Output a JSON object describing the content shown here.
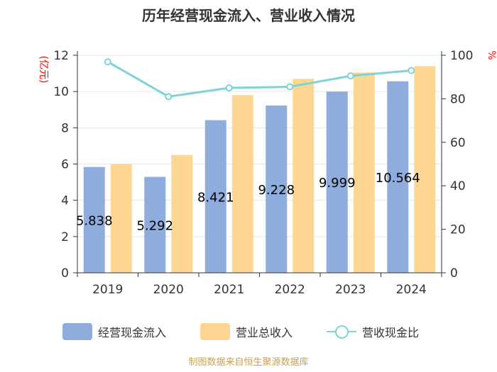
{
  "title": "历年经营现金流入、营业收入情况",
  "source": "制图数据来自恒生聚源数据库",
  "colors": {
    "cash": "#8eacdc",
    "revenue": "#fdd791",
    "ratio": "#7fd3d6",
    "axis": "#333333",
    "grid": "#e6e6e6",
    "unit": "#ff0000",
    "bar_label": "#000000"
  },
  "chart_data": {
    "type": "bar",
    "title": "历年经营现金流入、营业收入情况",
    "categories": [
      "2019",
      "2020",
      "2021",
      "2022",
      "2023",
      "2024"
    ],
    "series": [
      {
        "name": "经营现金流入",
        "axis": "left",
        "values": [
          5.838,
          5.292,
          8.421,
          9.228,
          9.999,
          10.564
        ],
        "labels": [
          "5.838",
          "5.292",
          "8.421",
          "9.228",
          "9.999",
          "10.564"
        ]
      },
      {
        "name": "营业总收入",
        "axis": "left",
        "values": [
          6.0,
          6.5,
          9.8,
          10.7,
          11.05,
          11.4
        ]
      },
      {
        "name": "营收现金比",
        "axis": "right",
        "type": "line",
        "values": [
          97,
          81,
          85,
          85.5,
          90.5,
          93
        ]
      }
    ],
    "left_axis": {
      "label": "(亿元)",
      "ylim": [
        0,
        12
      ],
      "ticks": [
        "0",
        "2",
        "4",
        "6",
        "8",
        "10",
        "12"
      ]
    },
    "right_axis": {
      "label": "%",
      "ylim": [
        0,
        100
      ],
      "ticks": [
        "0",
        "20",
        "40",
        "60",
        "80",
        "100"
      ]
    },
    "legend": [
      "经营现金流入",
      "营业总收入",
      "营收现金比"
    ],
    "legend_position": "bottom"
  }
}
